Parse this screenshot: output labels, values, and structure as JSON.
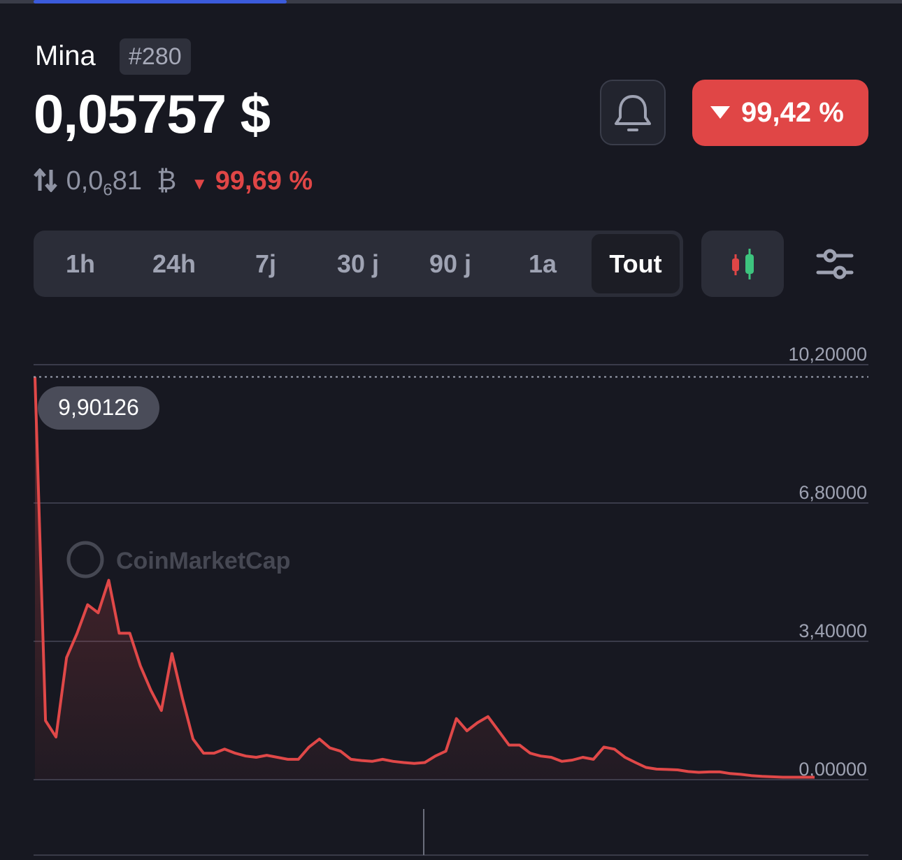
{
  "header": {
    "name": "Mina",
    "rank": "#280",
    "price": "0,05757 $",
    "change": "99,42 %",
    "btc": {
      "prefix": "0,0",
      "zeros": "6",
      "digits": "81",
      "symbol": "₿",
      "change": "99,69 %"
    }
  },
  "tabs": [
    "1h",
    "24h",
    "7j",
    "30 j",
    "90 j",
    "1a",
    "Tout"
  ],
  "watermark": "CoinMarketCap",
  "chart_data": {
    "type": "area",
    "color": "#e04848",
    "max_label": "9,90126",
    "ylim": [
      0,
      10.2
    ],
    "yticks": [
      {
        "value": 0,
        "label": "0,00000"
      },
      {
        "value": 3.4,
        "label": "3,40000"
      },
      {
        "value": 6.8,
        "label": "6,80000"
      },
      {
        "value": 10.2,
        "label": "10,20000"
      }
    ],
    "grid": true,
    "values": [
      9.9,
      1.45,
      1.05,
      3.0,
      3.6,
      4.3,
      4.1,
      4.9,
      3.6,
      3.6,
      2.8,
      2.2,
      1.7,
      3.1,
      2.0,
      1.0,
      0.65,
      0.65,
      0.75,
      0.65,
      0.58,
      0.55,
      0.6,
      0.55,
      0.5,
      0.5,
      0.8,
      1.0,
      0.78,
      0.7,
      0.5,
      0.47,
      0.45,
      0.5,
      0.45,
      0.42,
      0.4,
      0.42,
      0.58,
      0.7,
      1.5,
      1.2,
      1.4,
      1.55,
      1.2,
      0.85,
      0.85,
      0.65,
      0.58,
      0.55,
      0.45,
      0.48,
      0.55,
      0.5,
      0.8,
      0.75,
      0.55,
      0.42,
      0.3,
      0.26,
      0.25,
      0.24,
      0.2,
      0.18,
      0.19,
      0.19,
      0.15,
      0.13,
      0.1,
      0.08,
      0.07,
      0.06,
      0.06,
      0.06,
      0.06
    ]
  }
}
